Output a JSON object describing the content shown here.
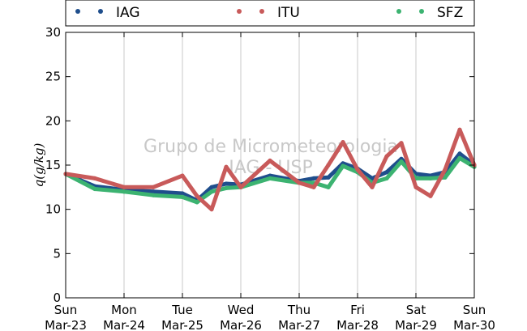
{
  "chart_data": {
    "type": "line",
    "title": "",
    "xlabel": "",
    "ylabel": "q(g/kg)",
    "ylim": [
      0,
      30
    ],
    "yticks": [
      "0",
      "5",
      "10",
      "15",
      "20",
      "25",
      "30"
    ],
    "xticks": [
      {
        "day": "Sun",
        "date": "Mar-23"
      },
      {
        "day": "Mon",
        "date": "Mar-24"
      },
      {
        "day": "Tue",
        "date": "Mar-25"
      },
      {
        "day": "Wed",
        "date": "Mar-26"
      },
      {
        "day": "Thu",
        "date": "Mar-27"
      },
      {
        "day": "Fri",
        "date": "Mar-28"
      },
      {
        "day": "Sat",
        "date": "Mar-29"
      },
      {
        "day": "Sun",
        "date": "Mar-30"
      }
    ],
    "grid": "vertical",
    "legend_position": "top",
    "watermark": [
      "Grupo de Micrometeorologia",
      "IAG - USP"
    ],
    "x_dates": [
      "Mar-23 00:00",
      "Mar-23 12:00",
      "Mar-24 00:00",
      "Mar-24 12:00",
      "Mar-25 00:00",
      "Mar-25 06:00",
      "Mar-25 12:00",
      "Mar-25 18:00",
      "Mar-26 00:00",
      "Mar-26 12:00",
      "Mar-27 00:00",
      "Mar-27 06:00",
      "Mar-27 12:00",
      "Mar-27 18:00",
      "Mar-28 00:00",
      "Mar-28 06:00",
      "Mar-28 12:00",
      "Mar-28 18:00",
      "Mar-29 00:00",
      "Mar-29 06:00",
      "Mar-29 12:00",
      "Mar-29 18:00",
      "Mar-30 00:00"
    ],
    "series": [
      {
        "name": "IAG",
        "color": "#1f4e8c",
        "values": [
          14.0,
          12.6,
          12.2,
          12.0,
          11.8,
          11.0,
          12.5,
          12.9,
          12.8,
          13.8,
          13.2,
          13.5,
          13.6,
          15.2,
          14.6,
          13.5,
          14.2,
          15.7,
          14.0,
          13.8,
          14.2,
          16.3,
          15.0
        ]
      },
      {
        "name": "ITU",
        "color": "#c85a5a",
        "values": [
          14.0,
          13.5,
          12.5,
          12.5,
          13.8,
          11.5,
          10.0,
          14.8,
          12.5,
          15.5,
          13.0,
          12.5,
          15.0,
          17.6,
          14.5,
          12.5,
          16.0,
          17.5,
          12.5,
          11.5,
          14.5,
          19.0,
          15.0
        ]
      },
      {
        "name": "SFZ",
        "color": "#3cb371",
        "values": [
          14.0,
          12.3,
          12.0,
          11.6,
          11.4,
          10.8,
          12.0,
          12.4,
          12.5,
          13.5,
          13.0,
          13.0,
          12.5,
          14.9,
          14.2,
          13.0,
          13.5,
          15.4,
          13.5,
          13.5,
          13.6,
          15.8,
          14.8
        ]
      }
    ]
  }
}
